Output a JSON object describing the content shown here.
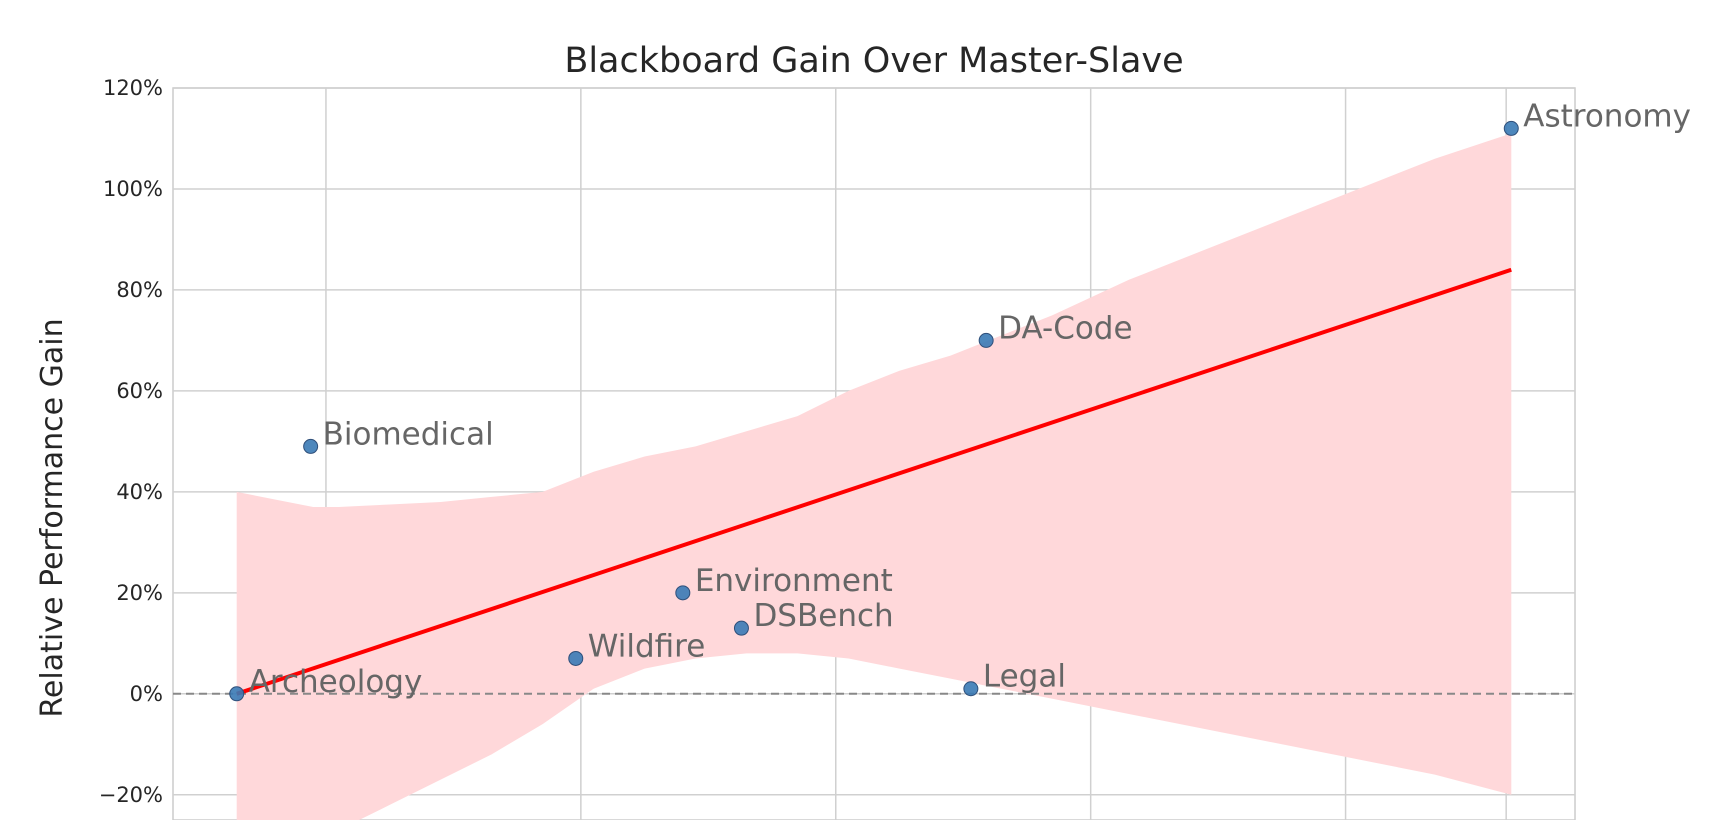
{
  "chart_data": {
    "type": "scatter",
    "title": "Blackboard Gain Over Master-Slave",
    "ylabel": "Relative Performance Gain",
    "ylim": [
      -0.25,
      1.2
    ],
    "y_ticks": [
      -0.2,
      0,
      0.2,
      0.4,
      0.6,
      0.8,
      1.0,
      1.2
    ],
    "y_tick_labels": [
      "−20%",
      "0%",
      "20%",
      "40%",
      "60%",
      "80%",
      "100%",
      "120%"
    ],
    "xlim": [
      -0.25,
      5.25
    ],
    "x_grid": [
      0.35,
      1.35,
      2.35,
      3.35,
      4.35,
      4.98
    ],
    "grid": true,
    "reference_line_y": 0,
    "point_color": "#3a7ab5",
    "regression_color": "#ff0000",
    "band_color": "#ffd8da",
    "points": [
      {
        "label": "Archeology",
        "x": 0.0,
        "y": 0.0
      },
      {
        "label": "Biomedical",
        "x": 0.29,
        "y": 0.49
      },
      {
        "label": "Wildfire",
        "x": 1.33,
        "y": 0.07
      },
      {
        "label": "Environment",
        "x": 1.75,
        "y": 0.2
      },
      {
        "label": "DSBench",
        "x": 1.98,
        "y": 0.13
      },
      {
        "label": "Legal",
        "x": 2.88,
        "y": 0.01
      },
      {
        "label": "DA-Code",
        "x": 2.94,
        "y": 0.7
      },
      {
        "label": "Astronomy",
        "x": 5.0,
        "y": 1.12
      }
    ],
    "regression": {
      "x": [
        0.0,
        5.0
      ],
      "y": [
        0.0,
        0.84
      ]
    },
    "confidence_band": {
      "x": [
        0.0,
        0.2,
        0.3,
        0.4,
        0.6,
        0.8,
        1.0,
        1.2,
        1.4,
        1.6,
        1.8,
        2.0,
        2.2,
        2.4,
        2.6,
        2.8,
        3.0,
        3.2,
        3.5,
        3.8,
        4.1,
        4.4,
        4.7,
        5.0
      ],
      "upper": [
        0.4,
        0.38,
        0.37,
        0.37,
        0.375,
        0.38,
        0.39,
        0.4,
        0.44,
        0.47,
        0.49,
        0.52,
        0.55,
        0.6,
        0.64,
        0.67,
        0.71,
        0.75,
        0.82,
        0.88,
        0.94,
        1.0,
        1.06,
        1.11
      ],
      "lower": [
        -0.3,
        -0.32,
        -0.3,
        -0.27,
        -0.22,
        -0.17,
        -0.12,
        -0.06,
        0.01,
        0.05,
        0.07,
        0.08,
        0.08,
        0.07,
        0.05,
        0.03,
        0.01,
        -0.01,
        -0.04,
        -0.07,
        -0.1,
        -0.13,
        -0.16,
        -0.2
      ]
    }
  }
}
